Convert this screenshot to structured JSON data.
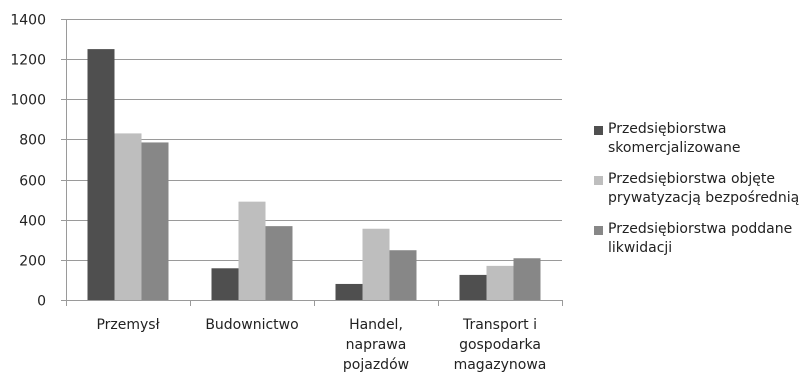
{
  "chart_data": {
    "type": "bar",
    "categories": [
      [
        "Przemysł"
      ],
      [
        "Budownictwo"
      ],
      [
        "Handel,",
        "naprawa",
        "pojazdów"
      ],
      [
        "Transport i",
        "gospodarka",
        "magazynowa"
      ]
    ],
    "series": [
      {
        "name": "Przedsiębiorstwa skomercjalizowane",
        "name_lines": [
          "Przedsiębiorstwa",
          "skomercjalizowane"
        ],
        "color": "#4f4f4f",
        "values": [
          1250,
          158,
          80,
          125
        ]
      },
      {
        "name": "Przedsiębiorstwa objęte prywatyzacją bezpośrednią",
        "name_lines": [
          "Przedsiębiorstwa objęte",
          "prywatyzacją bezpośrednią"
        ],
        "color": "#bebebe",
        "values": [
          830,
          490,
          355,
          170
        ]
      },
      {
        "name": "Przedsiębiorstwa poddane likwidacji",
        "name_lines": [
          "Przedsiębiorstwa poddane",
          "likwidacji"
        ],
        "color": "#878787",
        "values": [
          785,
          368,
          248,
          208
        ]
      }
    ],
    "ylim": [
      0,
      1400
    ],
    "yticks": [
      0,
      200,
      400,
      600,
      800,
      1000,
      1200,
      1400
    ],
    "grid": true,
    "legend": "right"
  }
}
